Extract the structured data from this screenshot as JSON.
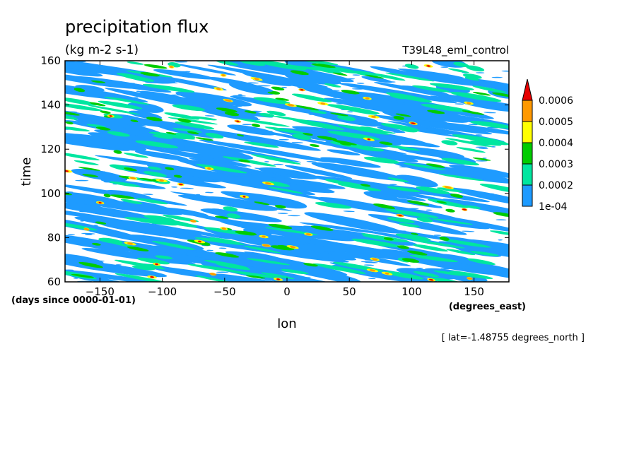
{
  "chart_data": {
    "type": "heatmap",
    "title": "precipitation flux",
    "units": "(kg m-2 s-1)",
    "dataset": "T39L48_eml_control",
    "xlabel": "lon",
    "x_units": "(degrees_east)",
    "ylabel": "time",
    "y_units": "(days since 0000-01-01)",
    "annotation": "[ lat=-1.48755 degrees_north ]",
    "xlim": [
      -178,
      178
    ],
    "ylim": [
      60,
      160
    ],
    "x_ticks": [
      -150,
      -100,
      -50,
      0,
      50,
      100,
      150
    ],
    "y_ticks": [
      60,
      80,
      100,
      120,
      140,
      160
    ],
    "x_tick_labels": [
      "−150",
      "−100",
      "−50",
      "0",
      "50",
      "100",
      "150"
    ],
    "y_tick_labels": [
      "60",
      "80",
      "100",
      "120",
      "140",
      "160"
    ],
    "colorbar": {
      "levels": [
        "1e-04",
        "0.0002",
        "0.0003",
        "0.0004",
        "0.0005",
        "0.0006"
      ],
      "colors": [
        "#1e9bff",
        "#00e6a0",
        "#00cc00",
        "#ffff00",
        "#ff9900",
        "#e60000"
      ],
      "extend": "max"
    },
    "pattern": "dense small-scale precipitation streaks tilted downward toward the east (westward propagating disturbances) over the whole domain"
  }
}
